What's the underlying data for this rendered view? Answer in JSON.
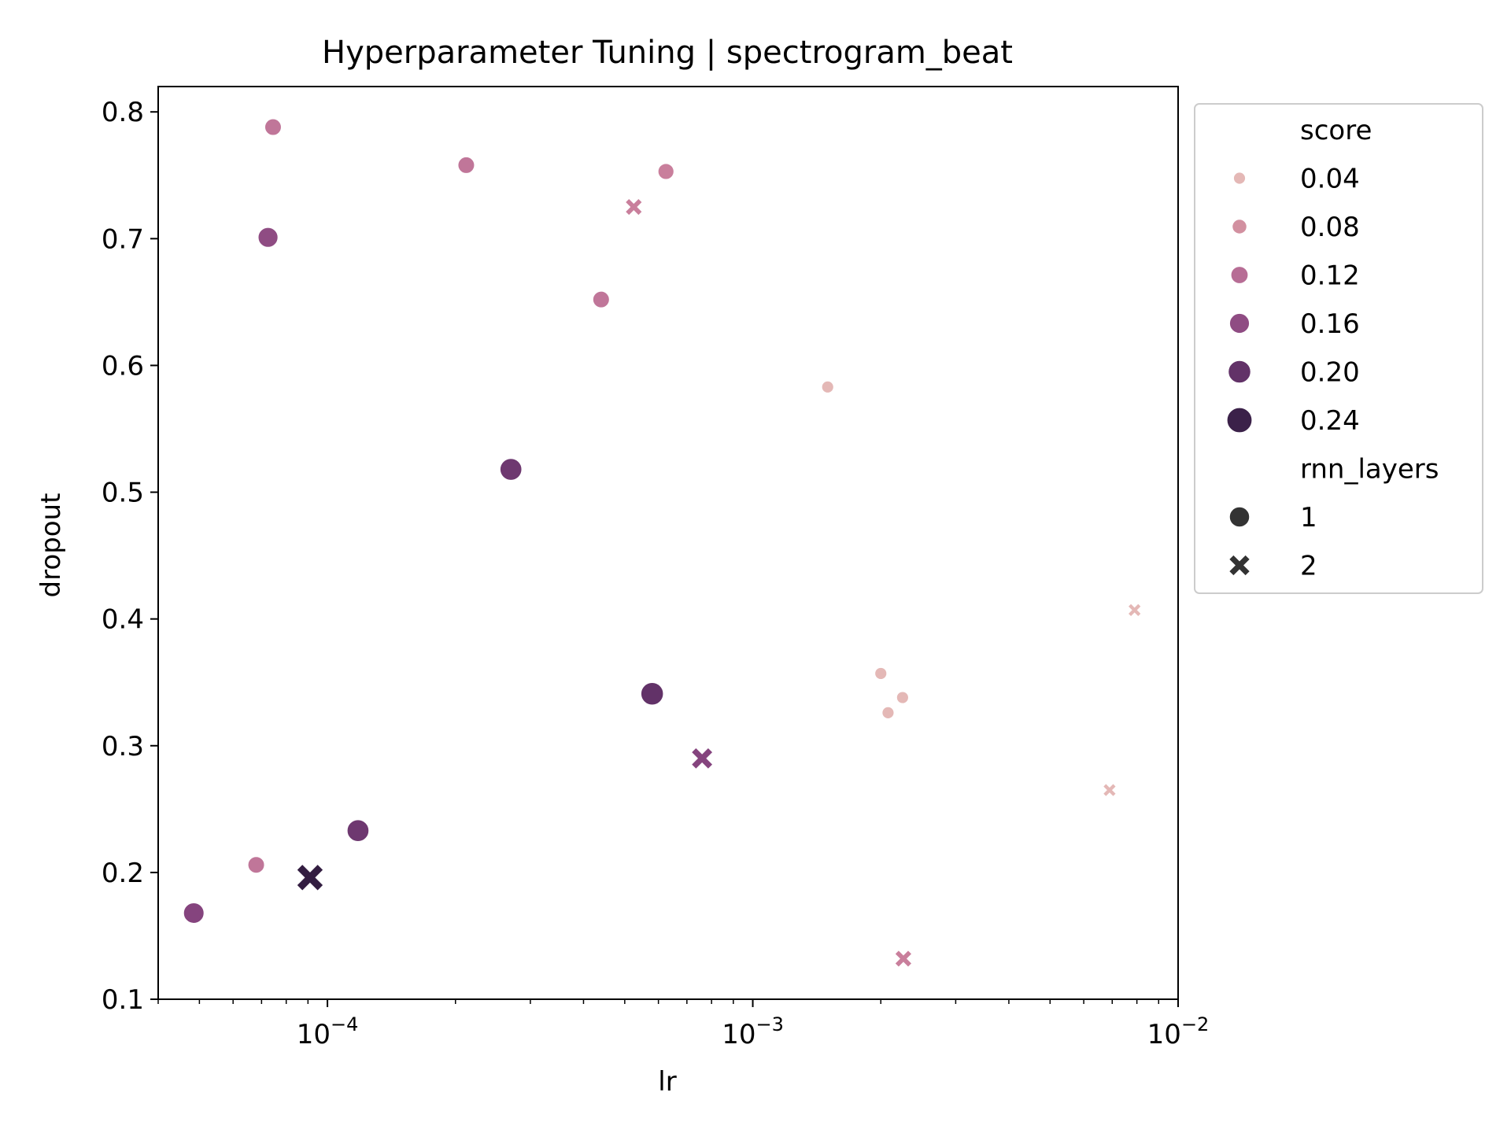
{
  "chart_data": {
    "type": "scatter",
    "title": "Hyperparameter Tuning | spectrogram_beat",
    "xlabel": "lr",
    "ylabel": "dropout",
    "xscale": "log",
    "xlim": [
      4e-05,
      0.01
    ],
    "ylim": [
      0.1,
      0.82
    ],
    "x_ticks": [
      {
        "value": 0.0001,
        "base": "10",
        "exp": "−4"
      },
      {
        "value": 0.001,
        "base": "10",
        "exp": "−3"
      },
      {
        "value": 0.01,
        "base": "10",
        "exp": "−2"
      }
    ],
    "y_ticks": [
      "0.1",
      "0.2",
      "0.3",
      "0.4",
      "0.5",
      "0.6",
      "0.7",
      "0.8"
    ],
    "grid": false,
    "legend_placement": "outside-right",
    "legend": {
      "hue_title": "score",
      "hue_entries": [
        {
          "label": "0.04",
          "value": 0.04
        },
        {
          "label": "0.08",
          "value": 0.08
        },
        {
          "label": "0.12",
          "value": 0.12
        },
        {
          "label": "0.16",
          "value": 0.16
        },
        {
          "label": "0.20",
          "value": 0.2
        },
        {
          "label": "0.24",
          "value": 0.24
        }
      ],
      "style_title": "rnn_layers",
      "style_entries": [
        {
          "label": "1",
          "marker": "circle"
        },
        {
          "label": "2",
          "marker": "x"
        }
      ]
    },
    "color_scale": {
      "min": 0.02,
      "max": 0.26,
      "stops": [
        "#ecd0c8",
        "#dba0a4",
        "#c97f9c",
        "#a45a8e",
        "#7a3d78",
        "#4a2757",
        "#2b1a3a"
      ]
    },
    "points": [
      {
        "lr": 7.45e-05,
        "dropout": 0.788,
        "score": 0.11,
        "rnn_layers": 1
      },
      {
        "lr": 0.000212,
        "dropout": 0.758,
        "score": 0.11,
        "rnn_layers": 1
      },
      {
        "lr": 0.000625,
        "dropout": 0.753,
        "score": 0.1,
        "rnn_layers": 1
      },
      {
        "lr": 0.000525,
        "dropout": 0.725,
        "score": 0.1,
        "rnn_layers": 2
      },
      {
        "lr": 7.25e-05,
        "dropout": 0.701,
        "score": 0.16,
        "rnn_layers": 1
      },
      {
        "lr": 0.00044,
        "dropout": 0.652,
        "score": 0.11,
        "rnn_layers": 1
      },
      {
        "lr": 0.0015,
        "dropout": 0.583,
        "score": 0.04,
        "rnn_layers": 1
      },
      {
        "lr": 0.00027,
        "dropout": 0.518,
        "score": 0.19,
        "rnn_layers": 1
      },
      {
        "lr": 0.0079,
        "dropout": 0.407,
        "score": 0.04,
        "rnn_layers": 2
      },
      {
        "lr": 0.002,
        "dropout": 0.357,
        "score": 0.04,
        "rnn_layers": 1
      },
      {
        "lr": 0.00225,
        "dropout": 0.338,
        "score": 0.04,
        "rnn_layers": 1
      },
      {
        "lr": 0.00208,
        "dropout": 0.326,
        "score": 0.04,
        "rnn_layers": 1
      },
      {
        "lr": 0.00058,
        "dropout": 0.341,
        "score": 0.2,
        "rnn_layers": 1
      },
      {
        "lr": 0.00076,
        "dropout": 0.29,
        "score": 0.17,
        "rnn_layers": 2
      },
      {
        "lr": 0.0069,
        "dropout": 0.265,
        "score": 0.04,
        "rnn_layers": 2
      },
      {
        "lr": 0.000118,
        "dropout": 0.233,
        "score": 0.19,
        "rnn_layers": 1
      },
      {
        "lr": 6.8e-05,
        "dropout": 0.206,
        "score": 0.11,
        "rnn_layers": 1
      },
      {
        "lr": 9.1e-05,
        "dropout": 0.196,
        "score": 0.25,
        "rnn_layers": 2
      },
      {
        "lr": 4.85e-05,
        "dropout": 0.168,
        "score": 0.17,
        "rnn_layers": 1
      },
      {
        "lr": 0.00226,
        "dropout": 0.132,
        "score": 0.1,
        "rnn_layers": 2
      }
    ]
  }
}
